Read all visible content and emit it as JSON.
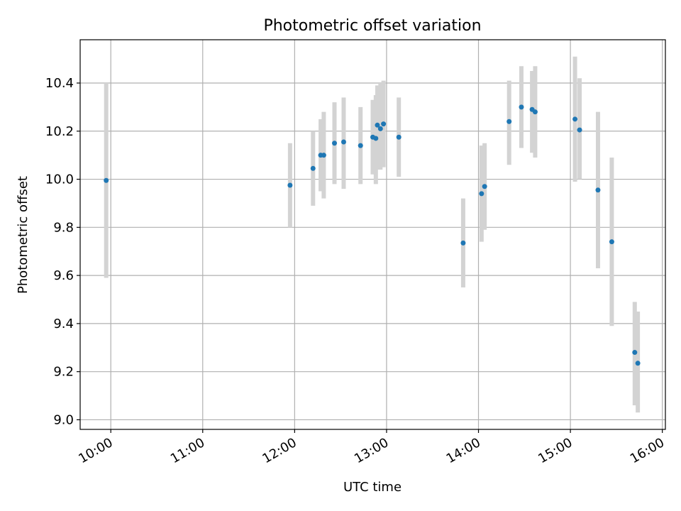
{
  "chart_data": {
    "type": "scatter",
    "title": "Photometric offset variation",
    "xlabel": "UTC time",
    "ylabel": "Photometric offset",
    "xlim": [
      "09:40",
      "16:02"
    ],
    "ylim": [
      8.96,
      10.58
    ],
    "xticks": [
      "10:00",
      "11:00",
      "12:00",
      "13:00",
      "14:00",
      "15:00",
      "16:00"
    ],
    "yticks": [
      9.0,
      9.2,
      9.4,
      9.6,
      9.8,
      10.0,
      10.2,
      10.4
    ],
    "ytick_labels": [
      "9.0",
      "9.2",
      "9.4",
      "9.6",
      "9.8",
      "10.0",
      "10.2",
      "10.4"
    ],
    "grid": true,
    "marker_color": "#1f77b4",
    "errorbar_color": "#d3d3d3",
    "points": [
      {
        "t": "09:57",
        "y": 9.995,
        "ylo": 9.59,
        "yhi": 10.4
      },
      {
        "t": "11:57",
        "y": 9.975,
        "ylo": 9.8,
        "yhi": 10.15
      },
      {
        "t": "12:12",
        "y": 10.045,
        "ylo": 9.89,
        "yhi": 10.2
      },
      {
        "t": "12:17",
        "y": 10.1,
        "ylo": 9.95,
        "yhi": 10.25
      },
      {
        "t": "12:19",
        "y": 10.1,
        "ylo": 9.92,
        "yhi": 10.28
      },
      {
        "t": "12:26",
        "y": 10.15,
        "ylo": 9.98,
        "yhi": 10.32
      },
      {
        "t": "12:32",
        "y": 10.155,
        "ylo": 9.96,
        "yhi": 10.34
      },
      {
        "t": "12:43",
        "y": 10.14,
        "ylo": 9.98,
        "yhi": 10.3
      },
      {
        "t": "12:51",
        "y": 10.175,
        "ylo": 10.02,
        "yhi": 10.33
      },
      {
        "t": "12:53",
        "y": 10.17,
        "ylo": 9.98,
        "yhi": 10.35
      },
      {
        "t": "12:54",
        "y": 10.225,
        "ylo": 10.04,
        "yhi": 10.39
      },
      {
        "t": "12:56",
        "y": 10.21,
        "ylo": 10.04,
        "yhi": 10.4
      },
      {
        "t": "12:58",
        "y": 10.23,
        "ylo": 10.05,
        "yhi": 10.41
      },
      {
        "t": "13:08",
        "y": 10.175,
        "ylo": 10.01,
        "yhi": 10.34
      },
      {
        "t": "13:50",
        "y": 9.735,
        "ylo": 9.55,
        "yhi": 9.92
      },
      {
        "t": "14:02",
        "y": 9.94,
        "ylo": 9.74,
        "yhi": 10.14
      },
      {
        "t": "14:04",
        "y": 9.97,
        "ylo": 9.79,
        "yhi": 10.15
      },
      {
        "t": "14:20",
        "y": 10.24,
        "ylo": 10.06,
        "yhi": 10.41
      },
      {
        "t": "14:28",
        "y": 10.3,
        "ylo": 10.13,
        "yhi": 10.47
      },
      {
        "t": "14:35",
        "y": 10.29,
        "ylo": 10.11,
        "yhi": 10.45
      },
      {
        "t": "14:37",
        "y": 10.28,
        "ylo": 10.09,
        "yhi": 10.47
      },
      {
        "t": "15:03",
        "y": 10.25,
        "ylo": 9.99,
        "yhi": 10.51
      },
      {
        "t": "15:06",
        "y": 10.205,
        "ylo": 10.0,
        "yhi": 10.42
      },
      {
        "t": "15:18",
        "y": 9.955,
        "ylo": 9.63,
        "yhi": 10.28
      },
      {
        "t": "15:27",
        "y": 9.74,
        "ylo": 9.39,
        "yhi": 10.09
      },
      {
        "t": "15:42",
        "y": 9.28,
        "ylo": 9.06,
        "yhi": 9.49
      },
      {
        "t": "15:44",
        "y": 9.235,
        "ylo": 9.03,
        "yhi": 9.45
      }
    ]
  }
}
